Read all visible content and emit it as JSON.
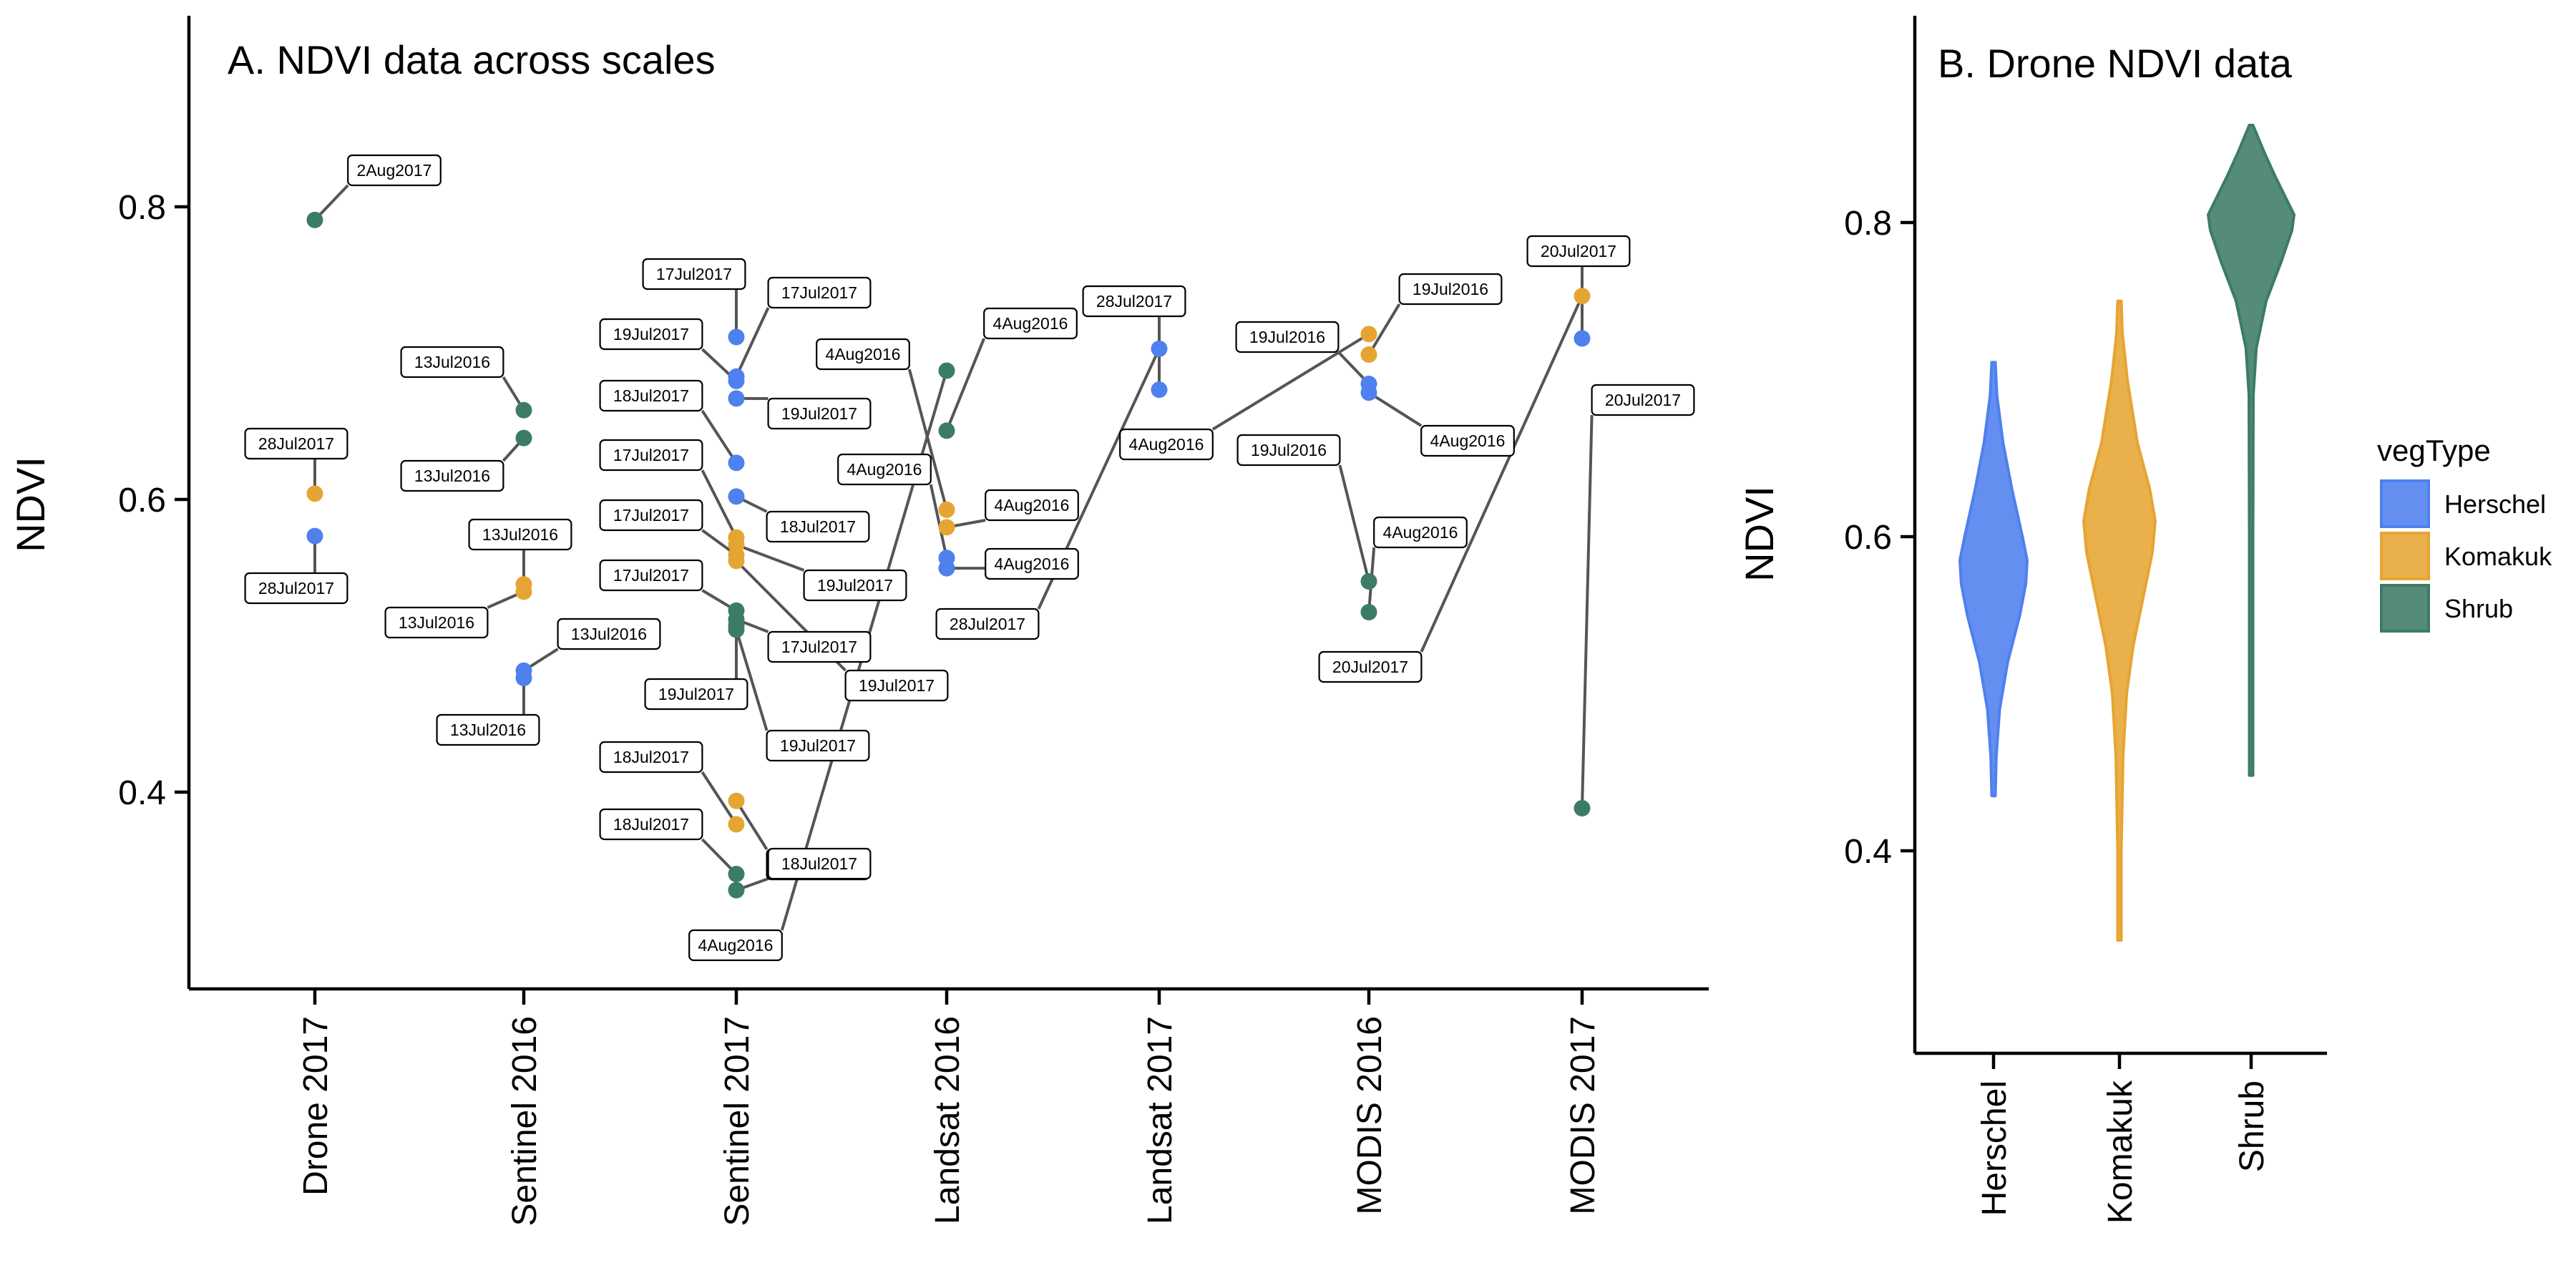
{
  "colors": {
    "Herschel": "#4e80ee",
    "Komakuk": "#e6a532",
    "Shrub": "#3c7c64"
  },
  "chart_data": [
    {
      "type": "scatter",
      "title": "A. NDVI data across scales",
      "xlabel": "",
      "ylabel": "NDVI",
      "categories": [
        "Drone 2017",
        "Sentinel 2016",
        "Sentinel 2017",
        "Landsat 2016",
        "Landsat 2017",
        "MODIS 2016",
        "MODIS 2017"
      ],
      "ylim": [
        0.27,
        0.93
      ],
      "yticks": [
        0.4,
        0.6,
        0.8
      ],
      "grid": false,
      "points": [
        {
          "cat": "Drone 2017",
          "veg": "Shrub",
          "y": 0.791,
          "label": "2Aug2017"
        },
        {
          "cat": "Drone 2017",
          "veg": "Komakuk",
          "y": 0.604,
          "label": "28Jul2017"
        },
        {
          "cat": "Drone 2017",
          "veg": "Herschel",
          "y": 0.575,
          "label": "28Jul2017"
        },
        {
          "cat": "Sentinel 2016",
          "veg": "Shrub",
          "y": 0.661,
          "label": "13Jul2016"
        },
        {
          "cat": "Sentinel 2016",
          "veg": "Shrub",
          "y": 0.642,
          "label": "13Jul2016"
        },
        {
          "cat": "Sentinel 2016",
          "veg": "Komakuk",
          "y": 0.542,
          "label": "13Jul2016"
        },
        {
          "cat": "Sentinel 2016",
          "veg": "Komakuk",
          "y": 0.537,
          "label": "13Jul2016"
        },
        {
          "cat": "Sentinel 2016",
          "veg": "Herschel",
          "y": 0.483,
          "label": "13Jul2016"
        },
        {
          "cat": "Sentinel 2016",
          "veg": "Herschel",
          "y": 0.478,
          "label": "13Jul2016"
        },
        {
          "cat": "Sentinel 2017",
          "veg": "Herschel",
          "y": 0.711,
          "label": "17Jul2017"
        },
        {
          "cat": "Sentinel 2017",
          "veg": "Herschel",
          "y": 0.684,
          "label": "17Jul2017"
        },
        {
          "cat": "Sentinel 2017",
          "veg": "Herschel",
          "y": 0.681,
          "label": "19Jul2017"
        },
        {
          "cat": "Sentinel 2017",
          "veg": "Herschel",
          "y": 0.669,
          "label": "19Jul2017"
        },
        {
          "cat": "Sentinel 2017",
          "veg": "Herschel",
          "y": 0.625,
          "label": "18Jul2017"
        },
        {
          "cat": "Sentinel 2017",
          "veg": "Herschel",
          "y": 0.602,
          "label": "18Jul2017"
        },
        {
          "cat": "Sentinel 2017",
          "veg": "Komakuk",
          "y": 0.574,
          "label": "17Jul2017"
        },
        {
          "cat": "Sentinel 2017",
          "veg": "Komakuk",
          "y": 0.569,
          "label": "19Jul2017"
        },
        {
          "cat": "Sentinel 2017",
          "veg": "Komakuk",
          "y": 0.562,
          "label": "17Jul2017"
        },
        {
          "cat": "Sentinel 2017",
          "veg": "Komakuk",
          "y": 0.558,
          "label": "19Jul2017"
        },
        {
          "cat": "Sentinel 2017",
          "veg": "Shrub",
          "y": 0.524,
          "label": "17Jul2017"
        },
        {
          "cat": "Sentinel 2017",
          "veg": "Shrub",
          "y": 0.518,
          "label": "17Jul2017"
        },
        {
          "cat": "Sentinel 2017",
          "veg": "Shrub",
          "y": 0.514,
          "label": "19Jul2017"
        },
        {
          "cat": "Sentinel 2017",
          "veg": "Shrub",
          "y": 0.511,
          "label": "19Jul2017"
        },
        {
          "cat": "Sentinel 2017",
          "veg": "Komakuk",
          "y": 0.394,
          "label": "18Jul2017"
        },
        {
          "cat": "Sentinel 2017",
          "veg": "Komakuk",
          "y": 0.378,
          "label": "18Jul2017"
        },
        {
          "cat": "Sentinel 2017",
          "veg": "Shrub",
          "y": 0.344,
          "label": "18Jul2017"
        },
        {
          "cat": "Sentinel 2017",
          "veg": "Shrub",
          "y": 0.333,
          "label": "18Jul2017"
        },
        {
          "cat": "Landsat 2016",
          "veg": "Shrub",
          "y": 0.688,
          "label": "4Aug2016"
        },
        {
          "cat": "Landsat 2016",
          "veg": "Shrub",
          "y": 0.647,
          "label": "4Aug2016"
        },
        {
          "cat": "Landsat 2016",
          "veg": "Komakuk",
          "y": 0.593,
          "label": "4Aug2016"
        },
        {
          "cat": "Landsat 2016",
          "veg": "Komakuk",
          "y": 0.581,
          "label": "4Aug2016"
        },
        {
          "cat": "Landsat 2016",
          "veg": "Herschel",
          "y": 0.56,
          "label": "4Aug2016"
        },
        {
          "cat": "Landsat 2016",
          "veg": "Herschel",
          "y": 0.553,
          "label": "4Aug2016"
        },
        {
          "cat": "Landsat 2017",
          "veg": "Herschel",
          "y": 0.703,
          "label": "28Jul2017"
        },
        {
          "cat": "Landsat 2017",
          "veg": "Herschel",
          "y": 0.675,
          "label": "28Jul2017"
        },
        {
          "cat": "MODIS 2016",
          "veg": "Komakuk",
          "y": 0.713,
          "label": "4Aug2016"
        },
        {
          "cat": "MODIS 2016",
          "veg": "Komakuk",
          "y": 0.699,
          "label": "19Jul2016"
        },
        {
          "cat": "MODIS 2016",
          "veg": "Herschel",
          "y": 0.679,
          "label": "19Jul2016"
        },
        {
          "cat": "MODIS 2016",
          "veg": "Herschel",
          "y": 0.673,
          "label": "4Aug2016"
        },
        {
          "cat": "MODIS 2016",
          "veg": "Shrub",
          "y": 0.544,
          "label": "19Jul2016"
        },
        {
          "cat": "MODIS 2016",
          "veg": "Shrub",
          "y": 0.523,
          "label": "4Aug2016"
        },
        {
          "cat": "MODIS 2017",
          "veg": "Komakuk",
          "y": 0.739,
          "label": "20Jul2017"
        },
        {
          "cat": "MODIS 2017",
          "veg": "Herschel",
          "y": 0.71,
          "label": "20Jul2017"
        },
        {
          "cat": "MODIS 2017",
          "veg": "Shrub",
          "y": 0.389,
          "label": "20Jul2017"
        }
      ]
    },
    {
      "type": "violin",
      "title": "B. Drone NDVI data",
      "xlabel": "",
      "ylabel": "NDVI",
      "categories": [
        "Herschel",
        "Komakuk",
        "Shrub"
      ],
      "ylim": [
        0.27,
        0.93
      ],
      "yticks": [
        0.4,
        0.6,
        0.8
      ],
      "legend": {
        "title": "vegType",
        "entries": [
          "Herschel",
          "Komakuk",
          "Shrub"
        ],
        "position": "right"
      },
      "series": [
        {
          "name": "Herschel",
          "min": 0.435,
          "max": 0.711,
          "profile": [
            [
              0.435,
              0.03
            ],
            [
              0.46,
              0.08
            ],
            [
              0.49,
              0.18
            ],
            [
              0.52,
              0.42
            ],
            [
              0.55,
              0.78
            ],
            [
              0.57,
              0.96
            ],
            [
              0.585,
              1.0
            ],
            [
              0.6,
              0.86
            ],
            [
              0.63,
              0.55
            ],
            [
              0.66,
              0.28
            ],
            [
              0.69,
              0.1
            ],
            [
              0.711,
              0.03
            ]
          ]
        },
        {
          "name": "Komakuk",
          "min": 0.343,
          "max": 0.75,
          "profile": [
            [
              0.343,
              0.02
            ],
            [
              0.4,
              0.05
            ],
            [
              0.46,
              0.1
            ],
            [
              0.5,
              0.2
            ],
            [
              0.53,
              0.38
            ],
            [
              0.56,
              0.65
            ],
            [
              0.59,
              0.92
            ],
            [
              0.61,
              1.0
            ],
            [
              0.63,
              0.85
            ],
            [
              0.66,
              0.5
            ],
            [
              0.7,
              0.22
            ],
            [
              0.73,
              0.08
            ],
            [
              0.75,
              0.02
            ]
          ]
        },
        {
          "name": "Shrub",
          "min": 0.448,
          "max": 0.862,
          "profile": [
            [
              0.448,
              0.01
            ],
            [
              0.6,
              0.02
            ],
            [
              0.69,
              0.05
            ],
            [
              0.72,
              0.12
            ],
            [
              0.75,
              0.35
            ],
            [
              0.775,
              0.7
            ],
            [
              0.795,
              0.95
            ],
            [
              0.805,
              1.0
            ],
            [
              0.815,
              0.82
            ],
            [
              0.83,
              0.55
            ],
            [
              0.845,
              0.3
            ],
            [
              0.862,
              0.02
            ]
          ]
        }
      ]
    }
  ]
}
